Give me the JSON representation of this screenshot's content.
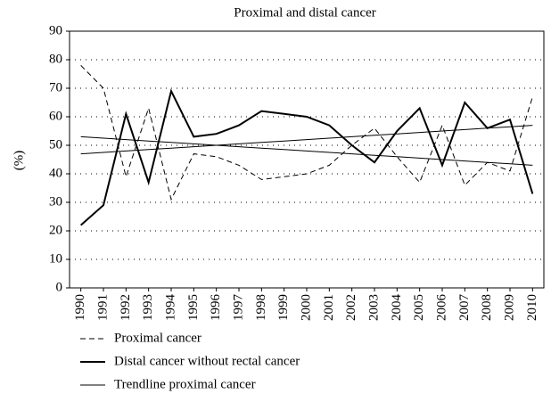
{
  "chart_data": {
    "type": "line",
    "title": "Proximal and distal cancer",
    "ylabel": "(%)",
    "x": [
      1990,
      1991,
      1992,
      1993,
      1994,
      1995,
      1996,
      1997,
      1998,
      1999,
      2000,
      2001,
      2002,
      2003,
      2004,
      2005,
      2006,
      2007,
      2008,
      2009,
      2010
    ],
    "xlim": [
      1989.5,
      2010.5
    ],
    "xticks": [
      1990,
      1991,
      1992,
      1993,
      1994,
      1995,
      1996,
      1997,
      1998,
      1999,
      2000,
      2001,
      2002,
      2003,
      2004,
      2005,
      2006,
      2007,
      2008,
      2009,
      2010
    ],
    "ylim": [
      0,
      90
    ],
    "yticks": [
      0,
      10,
      20,
      30,
      40,
      50,
      60,
      70,
      80,
      90
    ],
    "grid": true,
    "series": [
      {
        "name": "Proximal cancer",
        "color": "#000000",
        "linestyle": "dashed",
        "linewidth": 1,
        "values": [
          78,
          70,
          39,
          63,
          31,
          47,
          46,
          43,
          38,
          39,
          40,
          43,
          50,
          56,
          46,
          37,
          57,
          36,
          44,
          41,
          67
        ]
      },
      {
        "name": "Distal cancer without rectal cancer",
        "color": "#000000",
        "linestyle": "solid",
        "linewidth": 2,
        "values": [
          22,
          29,
          61,
          37,
          69,
          53,
          54,
          57,
          62,
          61,
          60,
          57,
          50,
          44,
          55,
          63,
          43,
          65,
          56,
          59,
          33
        ]
      },
      {
        "name": "Trendline proximal cancer",
        "color": "#000000",
        "linestyle": "solid",
        "linewidth": 1,
        "values": [
          53,
          52.5,
          52,
          51.5,
          51,
          50.5,
          50,
          49.5,
          49,
          48.5,
          48,
          47.5,
          47,
          46.5,
          46,
          45.5,
          45,
          44.5,
          44,
          43.5,
          43
        ]
      },
      {
        "color": "#000000",
        "linestyle": "solid",
        "linewidth": 1,
        "values": [
          47,
          47.5,
          48,
          48.5,
          49,
          49.5,
          50,
          50.5,
          51,
          51.5,
          52,
          52.5,
          53,
          53.5,
          54,
          54.5,
          55,
          55.5,
          56,
          56.5,
          57
        ]
      }
    ]
  }
}
